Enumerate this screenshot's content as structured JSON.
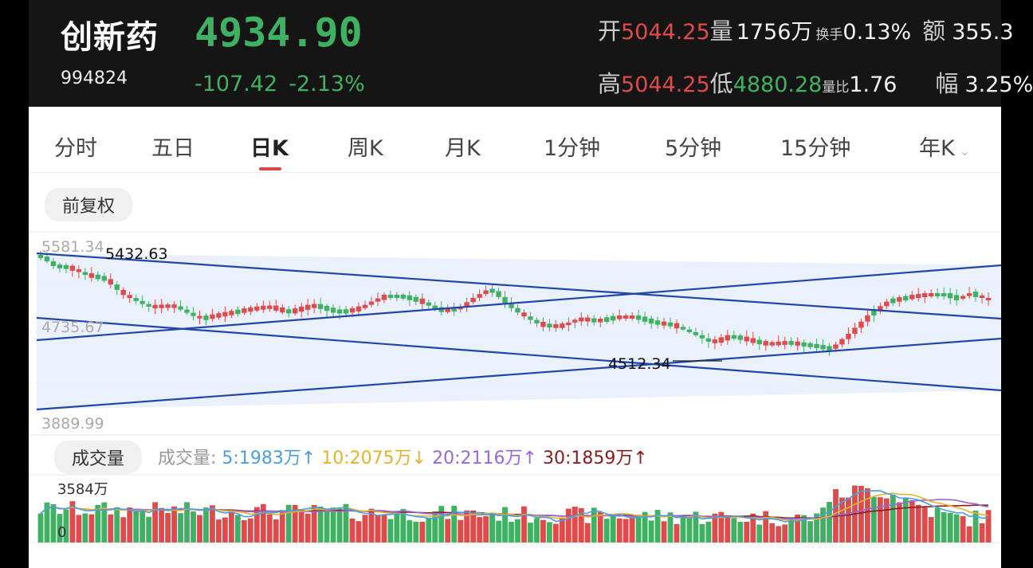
{
  "header": {
    "name": "创新药",
    "code": "994824",
    "price": "4934.90",
    "change": "-107.42",
    "change_pct": "-2.13%",
    "open_label": "开",
    "open": "5044.25",
    "vol_label": "量",
    "vol": "1756万",
    "turnover_label": "换手",
    "turnover": "0.13%",
    "amount_label": "额",
    "amount": "355.3",
    "high_label": "高",
    "high": "5044.25",
    "low_label": "低",
    "low": "4880.28",
    "ratio_label": "量比",
    "ratio": "1.76",
    "amp_label": "幅",
    "amp": "3.25%"
  },
  "tabs": [
    "分时",
    "五日",
    "日K",
    "周K",
    "月K",
    "1分钟",
    "5分钟",
    "15分钟",
    "年K"
  ],
  "active_tab": "日K",
  "chart": {
    "adjust_label": "前复权",
    "y_top": "5581.34",
    "y_mid": "4735.67",
    "y_bottom": "3889.99",
    "ann_high": "5432.63",
    "ann_low": "4512.34"
  },
  "volume": {
    "pill_label": "成交量",
    "legend_prefix": "成交量:",
    "ma5": "5:1983万↑",
    "ma10": "10:2075万↓",
    "ma20": "20:2116万↑",
    "ma30": "30:1859万↑",
    "max_label": "3584万",
    "zero_label": "0"
  },
  "colors": {
    "up": "#e04a4a",
    "down": "#3fb162",
    "trend": "#1f46a8",
    "ma5": "#4a9fe0",
    "ma10": "#e8b22d",
    "ma20": "#9a67d8",
    "ma30": "#8b1a1a"
  }
}
